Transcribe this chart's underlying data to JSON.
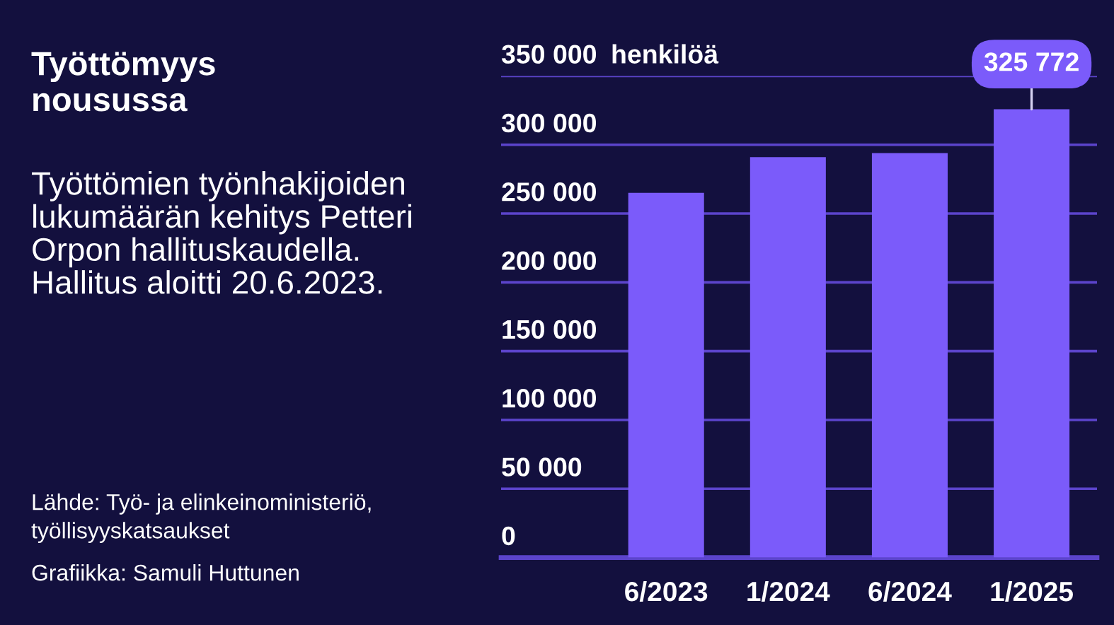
{
  "chart_data": {
    "type": "bar",
    "title": "Työttömyys\nnousussa",
    "subtitle": "Työttömien työnhakijoiden\nlukumäärän kehitys Petteri\nOrpon hallituskaudella.\nHallitus aloitti 20.6.2023.",
    "ylabel": "henkilöä",
    "categories": [
      "6/2023",
      "1/2024",
      "6/2024",
      "1/2025"
    ],
    "values": [
      265000,
      291000,
      294000,
      325772
    ],
    "value_labels": [
      null,
      null,
      null,
      "325 772"
    ],
    "color": "#7b5bfa",
    "ylim": [
      0,
      350000
    ],
    "yticks": [
      0,
      {
        "value": 50000,
        "label": "50 000"
      },
      {
        "value": 100000,
        "label": "100 000"
      },
      {
        "value": 150000,
        "label": "150 000"
      },
      {
        "value": 200000,
        "label": "200 000"
      },
      {
        "value": 250000,
        "label": "250 000"
      },
      {
        "value": 300000,
        "label": "300 000"
      },
      {
        "value": 350000,
        "label": "350 000"
      }
    ],
    "grid": "y",
    "annotations": [
      "Lähde: Työ- ja elinkeinoministeriö,\ntyöllisyyskatsaukset",
      "Grafiikka: Samuli Huttunen"
    ]
  }
}
